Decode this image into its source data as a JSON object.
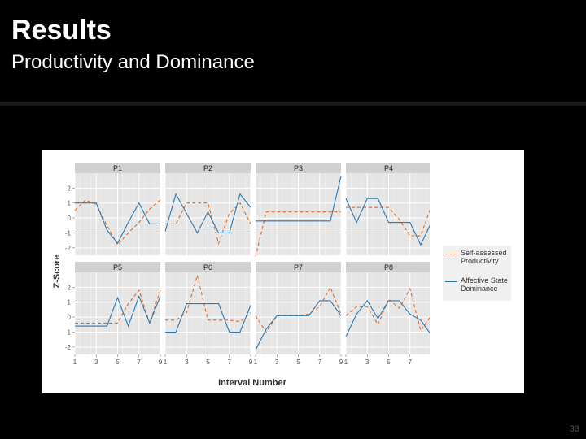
{
  "slide": {
    "title": "Results",
    "subtitle": "Productivity and Dominance",
    "page_number": "33"
  },
  "chart_data": {
    "type": "line",
    "xlabel": "Interval Number",
    "ylabel": "Z-Score",
    "xlim": [
      1,
      9
    ],
    "ylim": [
      -2.5,
      3
    ],
    "x_ticks": [
      1,
      3,
      5,
      7,
      9
    ],
    "x_tick_labels": [
      "1",
      "3",
      "5",
      "7",
      "9"
    ],
    "y_ticks": [
      -2,
      -1,
      0,
      1,
      2
    ],
    "y_tick_labels": [
      "-2",
      "-1",
      "0",
      "1",
      "2"
    ],
    "grid": true,
    "legend_position": "right",
    "series_styles": [
      {
        "name": "Self-assessed Productivity",
        "color": "#e4681f",
        "dash": "4,3"
      },
      {
        "name": "Affective State Dominance",
        "color": "#2a7ab5",
        "dash": ""
      }
    ],
    "x": [
      1,
      2,
      3,
      4,
      5,
      6,
      7,
      8,
      9
    ],
    "panels": [
      {
        "label": "P1",
        "series": [
          {
            "name": "Self-assessed Productivity",
            "values": [
              0.5,
              1.2,
              0.9,
              -0.5,
              -1.8,
              -1.0,
              -0.3,
              0.6,
              1.2
            ]
          },
          {
            "name": "Affective State Dominance",
            "values": [
              1.0,
              1.0,
              1.0,
              -0.8,
              -1.7,
              -0.3,
              1.0,
              -0.4,
              -0.4
            ]
          }
        ]
      },
      {
        "label": "P2",
        "series": [
          {
            "name": "Self-assessed Productivity",
            "values": [
              -0.4,
              -0.4,
              1.0,
              1.0,
              1.0,
              -1.7,
              0.3,
              1.0,
              -0.4
            ]
          },
          {
            "name": "Affective State Dominance",
            "values": [
              -0.9,
              1.6,
              0.3,
              -1.0,
              0.4,
              -1.0,
              -1.0,
              1.6,
              0.7
            ]
          }
        ]
      },
      {
        "label": "P3",
        "series": [
          {
            "name": "Self-assessed Productivity",
            "values": [
              -2.6,
              0.4,
              0.4,
              0.4,
              0.4,
              0.4,
              0.4,
              0.4,
              0.4
            ]
          },
          {
            "name": "Affective State Dominance",
            "values": [
              -0.2,
              -0.2,
              -0.2,
              -0.2,
              -0.2,
              -0.2,
              -0.2,
              -0.2,
              2.8
            ]
          }
        ]
      },
      {
        "label": "P4",
        "series": [
          {
            "name": "Self-assessed Productivity",
            "values": [
              0.7,
              0.7,
              0.7,
              0.7,
              0.7,
              -0.1,
              -1.2,
              -1.2,
              0.8
            ]
          },
          {
            "name": "Affective State Dominance",
            "values": [
              1.3,
              -0.3,
              1.3,
              1.3,
              -0.3,
              -0.3,
              -0.3,
              -1.8,
              -0.3
            ]
          }
        ]
      },
      {
        "label": "P5",
        "series": [
          {
            "name": "Self-assessed Productivity",
            "values": [
              -0.4,
              -0.4,
              -0.4,
              -0.4,
              -0.4,
              0.9,
              1.8,
              -0.4,
              1.8
            ]
          },
          {
            "name": "Affective State Dominance",
            "values": [
              -0.6,
              -0.6,
              -0.6,
              -0.6,
              1.3,
              -0.6,
              1.4,
              -0.4,
              1.4
            ]
          }
        ]
      },
      {
        "label": "P6",
        "series": [
          {
            "name": "Self-assessed Productivity",
            "values": [
              -0.2,
              -0.2,
              0.3,
              2.8,
              -0.2,
              -0.2,
              -0.2,
              -0.3,
              0.3
            ]
          },
          {
            "name": "Affective State Dominance",
            "values": [
              -1.0,
              -1.0,
              0.9,
              0.9,
              0.9,
              0.9,
              -1.0,
              -1.0,
              0.8
            ]
          }
        ]
      },
      {
        "label": "P7",
        "series": [
          {
            "name": "Self-assessed Productivity",
            "values": [
              0.1,
              -1.0,
              0.1,
              0.1,
              0.1,
              0.2,
              0.7,
              2.0,
              0.2
            ]
          },
          {
            "name": "Affective State Dominance",
            "values": [
              -2.2,
              -0.8,
              0.1,
              0.1,
              0.1,
              0.1,
              1.1,
              1.1,
              0.1
            ]
          }
        ]
      },
      {
        "label": "P8",
        "series": [
          {
            "name": "Self-assessed Productivity",
            "values": [
              0.1,
              0.7,
              0.7,
              -0.5,
              1.2,
              0.6,
              1.9,
              -0.9,
              0.1
            ]
          },
          {
            "name": "Affective State Dominance",
            "values": [
              -1.3,
              0.2,
              1.1,
              -0.1,
              1.1,
              1.1,
              0.2,
              -0.2,
              -1.2
            ]
          }
        ]
      }
    ]
  }
}
